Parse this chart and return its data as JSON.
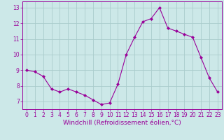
{
  "x": [
    0,
    1,
    2,
    3,
    4,
    5,
    6,
    7,
    8,
    9,
    10,
    11,
    12,
    13,
    14,
    15,
    16,
    17,
    18,
    19,
    20,
    21,
    22,
    23
  ],
  "y": [
    9.0,
    8.9,
    8.6,
    7.8,
    7.6,
    7.8,
    7.6,
    7.4,
    7.1,
    6.8,
    6.9,
    8.1,
    10.0,
    11.1,
    12.1,
    12.3,
    13.0,
    11.7,
    11.5,
    11.3,
    11.1,
    9.8,
    8.5,
    7.6
  ],
  "line_color": "#990099",
  "marker": "D",
  "marker_size": 2.0,
  "bg_color": "#cce8e8",
  "grid_color": "#b0d0d0",
  "xlabel": "Windchill (Refroidissement éolien,°C)",
  "xlabel_color": "#990099",
  "ylim": [
    6.5,
    13.4
  ],
  "xlim": [
    -0.5,
    23.5
  ],
  "yticks": [
    7,
    8,
    9,
    10,
    11,
    12,
    13
  ],
  "xticks": [
    0,
    1,
    2,
    3,
    4,
    5,
    6,
    7,
    8,
    9,
    10,
    11,
    12,
    13,
    14,
    15,
    16,
    17,
    18,
    19,
    20,
    21,
    22,
    23
  ],
  "tick_color": "#990099",
  "tick_fontsize": 5.5,
  "xlabel_fontsize": 6.5,
  "spine_color": "#990099",
  "linewidth": 0.8
}
